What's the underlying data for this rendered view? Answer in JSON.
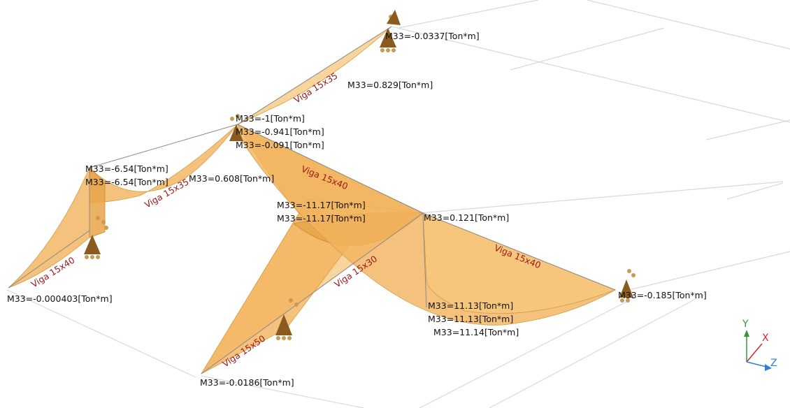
{
  "colors": {
    "moment_fill": "#f2b35c",
    "beam_label": "#a01818",
    "moment_label": "#111111",
    "support": "#8b5a1e",
    "grid": "#d9d9d9",
    "axis_y": "#2e9a3a",
    "axis_x": "#d8232a",
    "axis_z": "#2f7fd6"
  },
  "beam_labels": {
    "b1": "Viga 15x35",
    "b2": "Viga 15x35",
    "b3": "Viga 15x40",
    "b4": "Viga 15x40",
    "b5": "Viga 15x40",
    "b6": "Viga 15x30",
    "b7": "Viga 15x50"
  },
  "moment_labels": {
    "m_top": "M33=-0.0337[Ton*m]",
    "m_span1": "M33=0.829[Ton*m]",
    "m_node_a1": "M33=-1[Ton*m]",
    "m_node_a2": "M33=-0.941[Ton*m]",
    "m_node_a3": "M33=-0.091[Ton*m]",
    "m_left_1": "M33=-6.54[Ton*m]",
    "m_left_2": "M33=-6.54[Ton*m]",
    "m_span2": "M33=0.608[Ton*m]",
    "m_mid_1": "M33=-11.17[Ton*m]",
    "m_mid_2": "M33=-11.17[Ton*m]",
    "m_node_b": "M33=0.121[Ton*m]",
    "m_far_left": "M33=-0.000403[Ton*m]",
    "m_right": "M33=-0.185[Ton*m]",
    "m_pos_1": "M33=11.13[Ton*m]",
    "m_pos_2": "M33=11.13[Ton*m]",
    "m_pos_3": "M33=11.14[Ton*m]",
    "m_bottom": "M33=-0.0186[Ton*m]"
  },
  "axes": {
    "y": "Y",
    "x": "X",
    "z": "Z"
  }
}
